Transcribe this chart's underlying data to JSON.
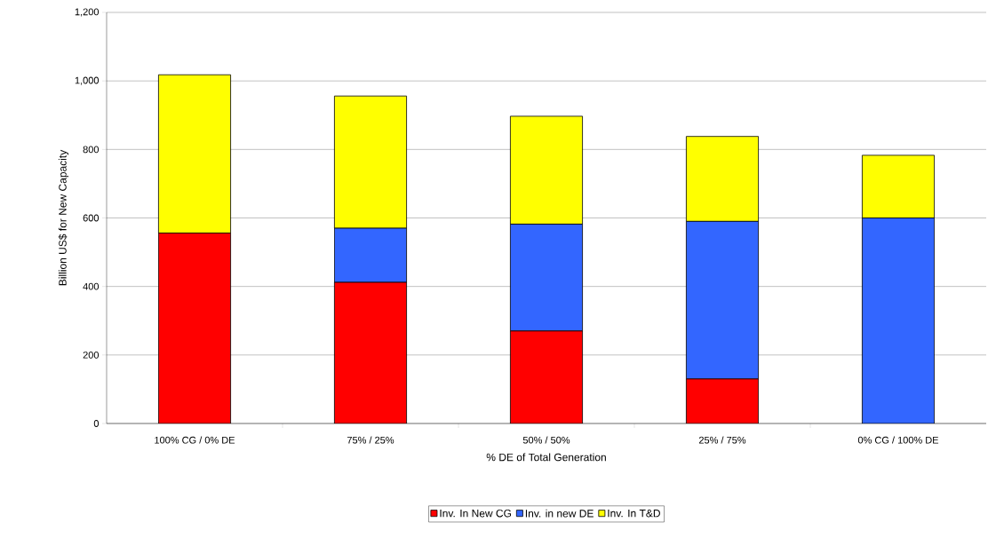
{
  "chart_data": {
    "type": "bar",
    "stacked": true,
    "xlabel": "% DE of Total Generation",
    "ylabel": "Billion US$ for New Capacity",
    "categories": [
      "100% CG / 0% DE",
      "75%  / 25%",
      "50% / 50%",
      "25% / 75%",
      "0% CG / 100% DE"
    ],
    "series": [
      {
        "name": "Inv. In New CG",
        "color": "#ff0000",
        "values": [
          556,
          412,
          270,
          130,
          0
        ]
      },
      {
        "name": "Inv. in new DE",
        "color": "#3366ff",
        "values": [
          0,
          158,
          312,
          460,
          600
        ]
      },
      {
        "name": "Inv. In T&D",
        "color": "#ffff00",
        "values": [
          462,
          386,
          315,
          248,
          183
        ]
      }
    ],
    "ylim": [
      0,
      1200
    ],
    "yticks": [
      0,
      200,
      400,
      600,
      800,
      {
        "value": 1000,
        "label": "1,000"
      },
      {
        "value": 1200,
        "label": "1,200"
      }
    ],
    "grid": "y",
    "legend": "bottom"
  }
}
